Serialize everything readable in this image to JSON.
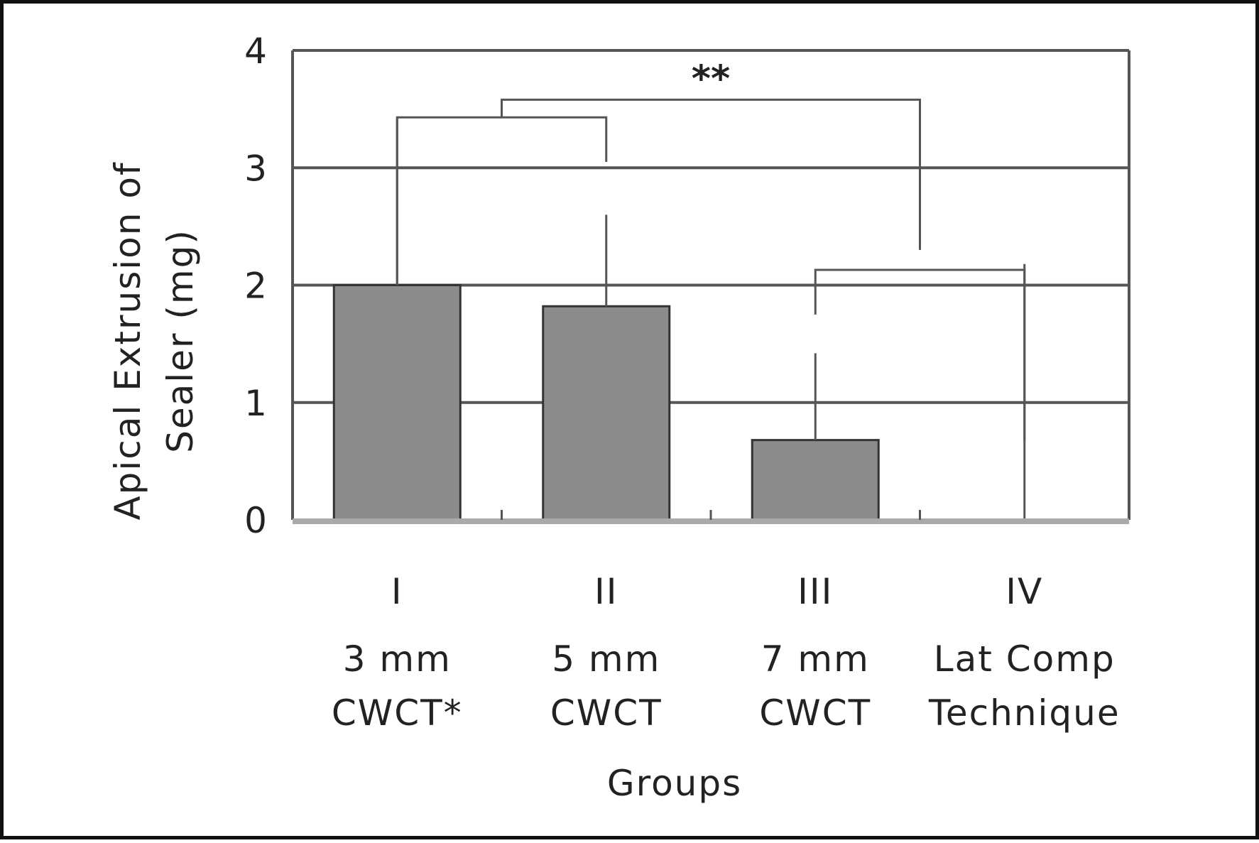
{
  "chart_data": {
    "type": "bar",
    "title": "",
    "xlabel": "Groups",
    "ylabel": [
      "Apical Extrusion of",
      "Sealer (mg)"
    ],
    "ylim": [
      0,
      4
    ],
    "yticks": [
      0,
      1,
      2,
      3,
      4
    ],
    "grid": true,
    "categories": [
      {
        "numeral": "I",
        "line1": "3 mm",
        "line2": "CWCT*"
      },
      {
        "numeral": "II",
        "line1": "5 mm",
        "line2": "CWCT"
      },
      {
        "numeral": "III",
        "line1": "7 mm",
        "line2": "CWCT"
      },
      {
        "numeral": "IV",
        "line1": "Lat Comp",
        "line2": "Technique"
      }
    ],
    "values": [
      2.0,
      1.82,
      0.68,
      0
    ],
    "error_upper": [
      3.42,
      2.6,
      1.42,
      2.18
    ],
    "bar_color": "#8c8c8c",
    "significance": [
      {
        "from": 0,
        "to": 1,
        "level": 3.43,
        "left_drop": 2.0,
        "right_drop": 3.05,
        "label": ""
      },
      {
        "from": 0.5,
        "to": 2.5,
        "level": 3.58,
        "left_drop": 3.43,
        "right_drop": 2.3,
        "label": "**"
      },
      {
        "from": 2,
        "to": 3,
        "level": 2.13,
        "left_drop": 1.75,
        "right_drop": 0.68,
        "label": ""
      }
    ]
  }
}
